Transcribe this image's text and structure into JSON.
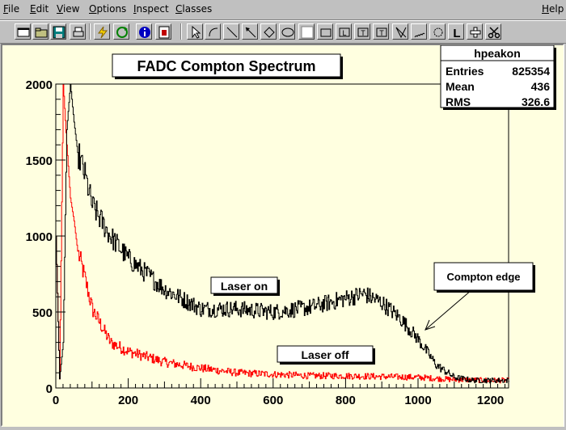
{
  "menu": {
    "items": [
      {
        "label": "File",
        "u": "F",
        "rest": "ile"
      },
      {
        "label": "Edit",
        "u": "E",
        "rest": "dit"
      },
      {
        "label": "View",
        "u": "V",
        "rest": "iew"
      },
      {
        "label": "Options",
        "u": "O",
        "rest": "ptions"
      },
      {
        "label": "Inspect",
        "u": "I",
        "rest": "nspect"
      },
      {
        "label": "Classes",
        "u": "C",
        "rest": "lasses"
      }
    ],
    "help": {
      "label": "Help",
      "u": "H",
      "rest": "elp"
    }
  },
  "toolbar": {
    "buttons": [
      "new-canvas-icon",
      "open-file-icon",
      "save-icon",
      "print-icon",
      "interrupt-icon",
      "refresh-icon",
      "info-icon",
      "browser-icon",
      "pointer-icon",
      "arc-icon",
      "line-icon",
      "arrow-icon",
      "diamond-icon",
      "ellipse-icon",
      "pad-icon",
      "pave-icon",
      "pave-label-icon",
      "pavetext-icon",
      "pavestext-icon",
      "graph-icon",
      "curly-line-icon",
      "curly-arc-icon",
      "latex-icon",
      "marker-icon",
      "cut-icon"
    ]
  },
  "histogram": {
    "title": "FADC Compton Spectrum",
    "stats": {
      "name": "hpeakon",
      "rows": [
        {
          "label": "Entries",
          "value": "825354"
        },
        {
          "label": "Mean",
          "value": "436"
        },
        {
          "label": "RMS",
          "value": "326.6"
        }
      ]
    },
    "labels": {
      "laser_on": "Laser on",
      "laser_off": "Laser off",
      "compton_edge": "Compton edge"
    }
  },
  "chart_data": {
    "type": "line",
    "title": "FADC Compton Spectrum",
    "xlabel": "",
    "ylabel": "",
    "xlim": [
      0,
      1250
    ],
    "ylim": [
      0,
      2000
    ],
    "xticks": [
      0,
      200,
      400,
      600,
      800,
      1000,
      1200
    ],
    "yticks": [
      0,
      500,
      1000,
      1500,
      2000
    ],
    "colors": {
      "laser_on": "#000000",
      "laser_off": "#ff0000"
    },
    "series": [
      {
        "name": "Laser on",
        "x": [
          0,
          10,
          20,
          30,
          40,
          50,
          60,
          80,
          100,
          150,
          200,
          300,
          400,
          500,
          600,
          700,
          800,
          850,
          900,
          950,
          1000,
          1050,
          1100,
          1150,
          1200,
          1250
        ],
        "y": [
          1000,
          60,
          300,
          1700,
          2000,
          1750,
          1550,
          1400,
          1200,
          1000,
          850,
          650,
          520,
          520,
          500,
          530,
          590,
          620,
          560,
          460,
          320,
          150,
          70,
          50,
          50,
          50
        ]
      },
      {
        "name": "Laser off",
        "x": [
          0,
          10,
          20,
          30,
          40,
          50,
          60,
          80,
          100,
          150,
          200,
          300,
          400,
          500,
          600,
          700,
          800,
          900,
          1000,
          1100,
          1200,
          1250
        ],
        "y": [
          1000,
          60,
          2000,
          1600,
          1250,
          1100,
          900,
          720,
          520,
          300,
          240,
          170,
          130,
          100,
          90,
          80,
          80,
          75,
          70,
          55,
          50,
          50
        ]
      }
    ]
  }
}
